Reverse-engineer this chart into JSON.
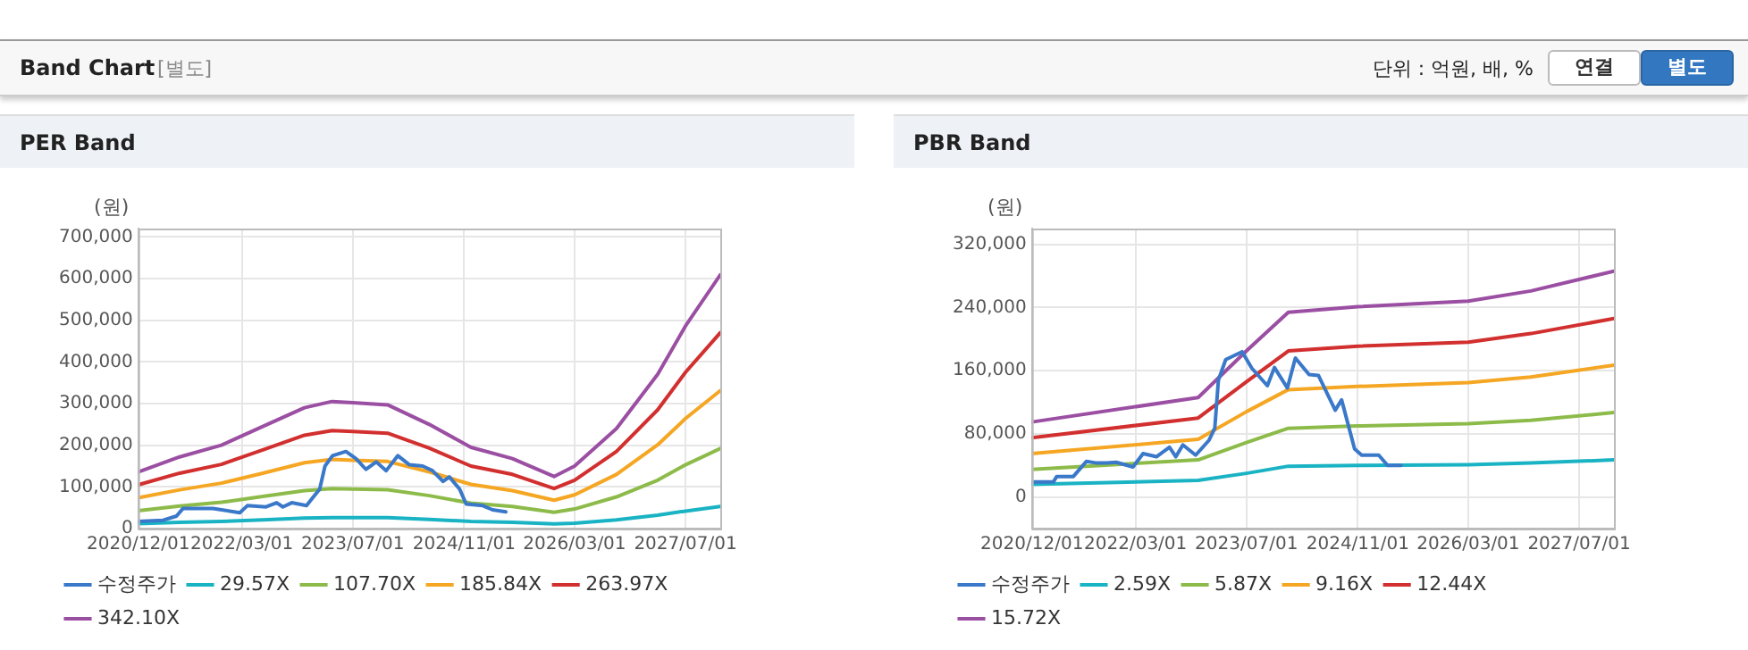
{
  "chart_data": [
    {
      "type": "line",
      "title": "PER Band",
      "ylabel": "(원)",
      "annotations": [
        "Band Chart",
        "[별도]",
        "단위 : 억원, 배, %",
        "연결",
        "별도"
      ],
      "legend": "bottom",
      "grid": true,
      "marker": "none",
      "line_style": "solid",
      "xlim": [
        "2020-12-01",
        "2027-12-01"
      ],
      "xticks": [
        {
          "value": "2020-12-01",
          "label": "2020/12/01"
        },
        {
          "value": "2022-03-01",
          "label": "2022/03/01"
        },
        {
          "value": "2023-07-01",
          "label": "2023/07/01"
        },
        {
          "value": "2024-11-01",
          "label": "2024/11/01"
        },
        {
          "value": "2026-03-01",
          "label": "2026/03/01"
        },
        {
          "value": "2027-07-01",
          "label": "2027/07/01"
        }
      ],
      "ylim": [
        0,
        720000
      ],
      "yticks": [
        {
          "value": 0,
          "label": "0"
        },
        {
          "value": 100000,
          "label": "100,000"
        },
        {
          "value": 200000,
          "label": "200,000"
        },
        {
          "value": 300000,
          "label": "300,000"
        },
        {
          "value": 400000,
          "label": "400,000"
        },
        {
          "value": 500000,
          "label": "500,000"
        },
        {
          "value": 600000,
          "label": "600,000"
        },
        {
          "value": 700000,
          "label": "700,000"
        }
      ],
      "x": [
        "2020-12-01",
        "2021-06-01",
        "2021-12-01",
        "2022-06-01",
        "2022-12-01",
        "2023-04-01",
        "2023-07-01",
        "2023-12-01",
        "2024-06-01",
        "2024-12-01",
        "2025-06-01",
        "2025-12-01",
        "2026-03-01",
        "2026-09-01",
        "2027-03-01",
        "2027-07-01",
        "2027-12-01"
      ],
      "series": [
        {
          "name": "수정주가",
          "color": "#3a78c9",
          "x": [
            "2020-12-01",
            "2021-03-20",
            "2021-05-18",
            "2021-06-15",
            "2021-10-25",
            "2022-02-20",
            "2022-03-25",
            "2022-06-15",
            "2022-08-01",
            "2022-08-28",
            "2022-10-06",
            "2022-12-10",
            "2023-01-06",
            "2023-02-06",
            "2023-03-01",
            "2023-04-03",
            "2023-06-01",
            "2023-07-15",
            "2023-08-28",
            "2023-10-12",
            "2023-11-25",
            "2024-01-15",
            "2024-03-06",
            "2024-05-03",
            "2024-06-15",
            "2024-08-01",
            "2024-08-28",
            "2024-10-12",
            "2024-11-10",
            "2025-01-22",
            "2025-03-06",
            "2025-05-03"
          ],
          "values": [
            17000,
            20000,
            30000,
            48000,
            48000,
            38000,
            55000,
            52000,
            62000,
            52000,
            62000,
            55000,
            74000,
            95000,
            150000,
            175000,
            185000,
            168000,
            142000,
            160000,
            139000,
            175000,
            153000,
            150000,
            139000,
            113000,
            124000,
            95000,
            59000,
            55000,
            45000,
            40000
          ]
        },
        {
          "name": "29.57X",
          "color": "#19b3c4",
          "values": [
            12000,
            15000,
            17000,
            21000,
            25000,
            26000,
            26000,
            26000,
            22000,
            17000,
            15000,
            11000,
            13000,
            21000,
            32000,
            42000,
            53000
          ]
        },
        {
          "name": "107.70X",
          "color": "#8dbb4a",
          "values": [
            43000,
            54000,
            63000,
            77000,
            91000,
            96000,
            95000,
            93000,
            79000,
            61000,
            53000,
            39000,
            47000,
            76000,
            116000,
            153000,
            192000
          ]
        },
        {
          "name": "185.84X",
          "color": "#f5a623",
          "values": [
            74000,
            93000,
            109000,
            133000,
            158000,
            166000,
            164000,
            161000,
            136000,
            106000,
            91000,
            68000,
            81000,
            130000,
            201000,
            264000,
            331000
          ]
        },
        {
          "name": "263.97X",
          "color": "#d22f2f",
          "values": [
            105000,
            133000,
            154000,
            189000,
            224000,
            235000,
            233000,
            229000,
            193000,
            150000,
            130000,
            96000,
            116000,
            185000,
            285000,
            375000,
            470000
          ]
        },
        {
          "name": "342.10X",
          "color": "#9b4fa3",
          "values": [
            136000,
            172000,
            200000,
            245000,
            290000,
            305000,
            302000,
            297000,
            250000,
            195000,
            168000,
            125000,
            150000,
            240000,
            370000,
            486000,
            609000
          ]
        }
      ]
    },
    {
      "type": "line",
      "title": "PBR Band",
      "ylabel": "(원)",
      "legend": "bottom",
      "grid": true,
      "marker": "none",
      "line_style": "solid",
      "xlim": [
        "2020-12-01",
        "2027-12-01"
      ],
      "xticks": [
        {
          "value": "2020-12-01",
          "label": "2020/12/01"
        },
        {
          "value": "2022-03-01",
          "label": "2022/03/01"
        },
        {
          "value": "2023-07-01",
          "label": "2023/07/01"
        },
        {
          "value": "2024-11-01",
          "label": "2024/11/01"
        },
        {
          "value": "2026-03-01",
          "label": "2026/03/01"
        },
        {
          "value": "2027-07-01",
          "label": "2027/07/01"
        }
      ],
      "ylim": [
        -40000,
        340000
      ],
      "yticks": [
        {
          "value": 0,
          "label": "0"
        },
        {
          "value": 80000,
          "label": "80,000"
        },
        {
          "value": 160000,
          "label": "160,000"
        },
        {
          "value": 240000,
          "label": "240,000"
        },
        {
          "value": 320000,
          "label": "320,000"
        }
      ],
      "x": [
        "2020-12-01",
        "2022-12-01",
        "2023-07-01",
        "2024-01-01",
        "2024-11-01",
        "2026-03-01",
        "2026-12-01",
        "2027-12-01"
      ],
      "series": [
        {
          "name": "수정주가",
          "color": "#3a78c9",
          "x": [
            "2020-12-01",
            "2021-03-05",
            "2021-03-20",
            "2021-06-01",
            "2021-07-28",
            "2021-09-12",
            "2021-10-25",
            "2021-12-06",
            "2022-02-18",
            "2022-04-03",
            "2022-06-01",
            "2022-07-28",
            "2022-08-25",
            "2022-09-25",
            "2022-11-20",
            "2023-01-18",
            "2023-02-12",
            "2023-02-28",
            "2023-04-01",
            "2023-06-12",
            "2023-07-25",
            "2023-10-01",
            "2023-11-01",
            "2023-12-28",
            "2024-02-01",
            "2024-04-01",
            "2024-05-12",
            "2024-07-25",
            "2024-08-22",
            "2024-10-18",
            "2024-11-18",
            "2025-02-01",
            "2025-03-12",
            "2025-05-10"
          ],
          "values": [
            19000,
            19000,
            26000,
            26000,
            45000,
            43000,
            43000,
            44000,
            38000,
            55000,
            51000,
            63000,
            51000,
            66000,
            53000,
            72000,
            87000,
            148000,
            174000,
            184000,
            163000,
            141000,
            164000,
            138000,
            176000,
            155000,
            154000,
            110000,
            123000,
            61000,
            53000,
            53000,
            40000,
            40000
          ]
        },
        {
          "name": "2.59X",
          "color": "#19b3c4",
          "values": [
            16000,
            21000,
            30000,
            39000,
            40000,
            41000,
            43000,
            47000
          ]
        },
        {
          "name": "5.87X",
          "color": "#8dbb4a",
          "values": [
            35000,
            47000,
            69000,
            87000,
            90000,
            93000,
            97000,
            107000
          ]
        },
        {
          "name": "9.16X",
          "color": "#f5a623",
          "values": [
            55000,
            73000,
            108000,
            136000,
            140000,
            145000,
            152000,
            167000
          ]
        },
        {
          "name": "12.44X",
          "color": "#d22f2f",
          "values": [
            75000,
            100000,
            146000,
            185000,
            191000,
            196000,
            207000,
            226000
          ]
        },
        {
          "name": "15.72X",
          "color": "#9b4fa3",
          "values": [
            95000,
            126000,
            185000,
            234000,
            241000,
            248000,
            261000,
            286000
          ]
        }
      ]
    }
  ]
}
